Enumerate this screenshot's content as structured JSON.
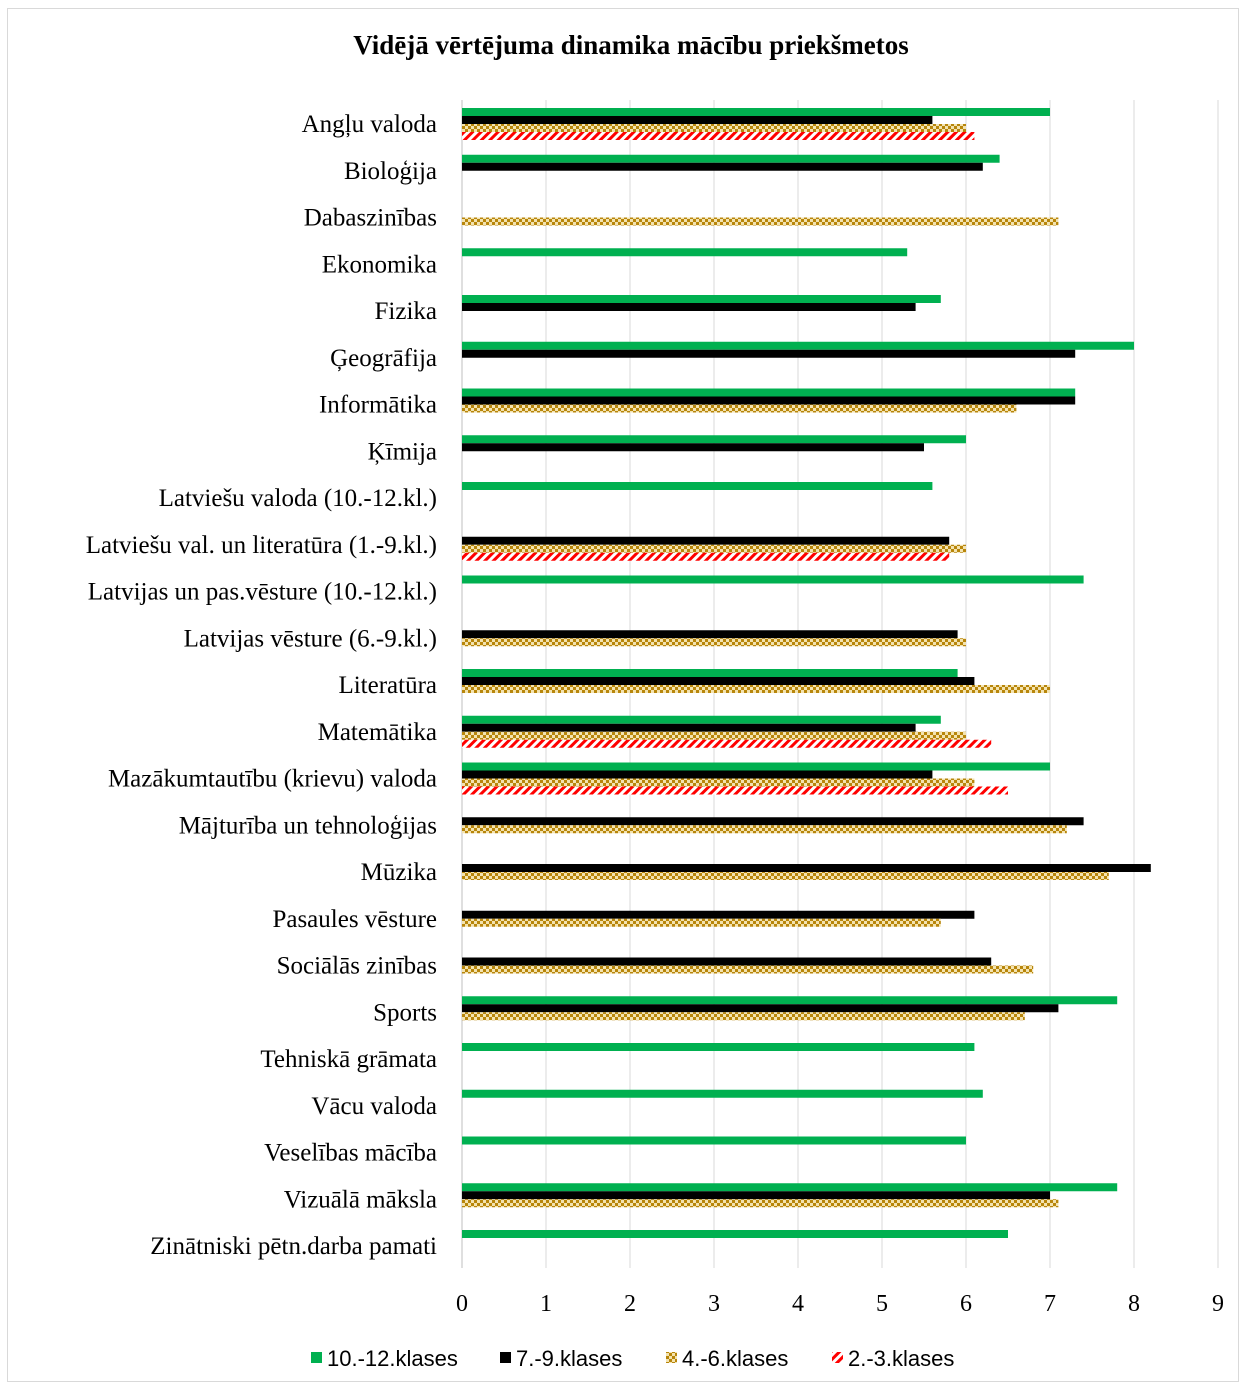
{
  "chart_data": {
    "type": "bar",
    "orientation": "horizontal",
    "title": "Vidējā vērtējuma dinamika mācību priekšmetos",
    "xlim": [
      0,
      9
    ],
    "xticks": [
      "0",
      "1",
      "2",
      "3",
      "4",
      "5",
      "6",
      "7",
      "8",
      "9"
    ],
    "grid": "vertical",
    "legend_position": "bottom",
    "categories": [
      "Angļu valoda",
      "Bioloģija",
      "Dabaszinības",
      "Ekonomika",
      "Fizika",
      "Ģeogrāfija",
      "Informātika",
      "Ķīmija",
      "Latviešu valoda (10.-12.kl.)",
      "Latviešu val. un literatūra (1.-9.kl.)",
      "Latvijas un pas.vēsture (10.-12.kl.)",
      "Latvijas vēsture (6.-9.kl.)",
      "Literatūra",
      "Matemātika",
      "Mazākumtautību (krievu) valoda",
      "Mājturība un tehnoloģijas",
      "Mūzika",
      "Pasaules vēsture",
      "Sociālās zinības",
      "Sports",
      "Tehniskā grāmata",
      "Vācu valoda",
      "Veselības mācība",
      "Vizuālā māksla",
      "Zinātniski pētn.darba pamati"
    ],
    "series": [
      {
        "name": "10.-12.klases",
        "color": "#00b050",
        "pattern": "solid",
        "values": [
          7.0,
          6.4,
          null,
          5.3,
          5.7,
          8.0,
          7.3,
          6.0,
          5.6,
          null,
          7.4,
          null,
          5.9,
          5.7,
          7.0,
          null,
          null,
          null,
          null,
          7.8,
          6.1,
          6.2,
          6.0,
          7.8,
          6.5
        ]
      },
      {
        "name": "7.-9.klases",
        "color": "#000000",
        "pattern": "solid",
        "values": [
          5.6,
          6.2,
          null,
          null,
          5.4,
          7.3,
          7.3,
          5.5,
          null,
          5.8,
          null,
          5.9,
          6.1,
          5.4,
          5.6,
          7.4,
          8.2,
          6.1,
          6.3,
          7.1,
          null,
          null,
          null,
          7.0,
          null
        ]
      },
      {
        "name": "4.-6.klases",
        "color": "#c9a227",
        "pattern": "checker",
        "values": [
          6.0,
          null,
          7.1,
          null,
          null,
          null,
          6.6,
          null,
          null,
          6.0,
          null,
          6.0,
          7.0,
          6.0,
          6.1,
          7.2,
          7.7,
          5.7,
          6.8,
          6.7,
          null,
          null,
          null,
          7.1,
          null
        ]
      },
      {
        "name": "2.-3.klases",
        "color": "#ff0000",
        "pattern": "diagonal",
        "values": [
          6.1,
          null,
          null,
          null,
          null,
          null,
          null,
          null,
          null,
          5.8,
          null,
          null,
          null,
          6.3,
          6.5,
          null,
          null,
          null,
          null,
          null,
          null,
          null,
          null,
          null,
          null
        ]
      }
    ]
  }
}
